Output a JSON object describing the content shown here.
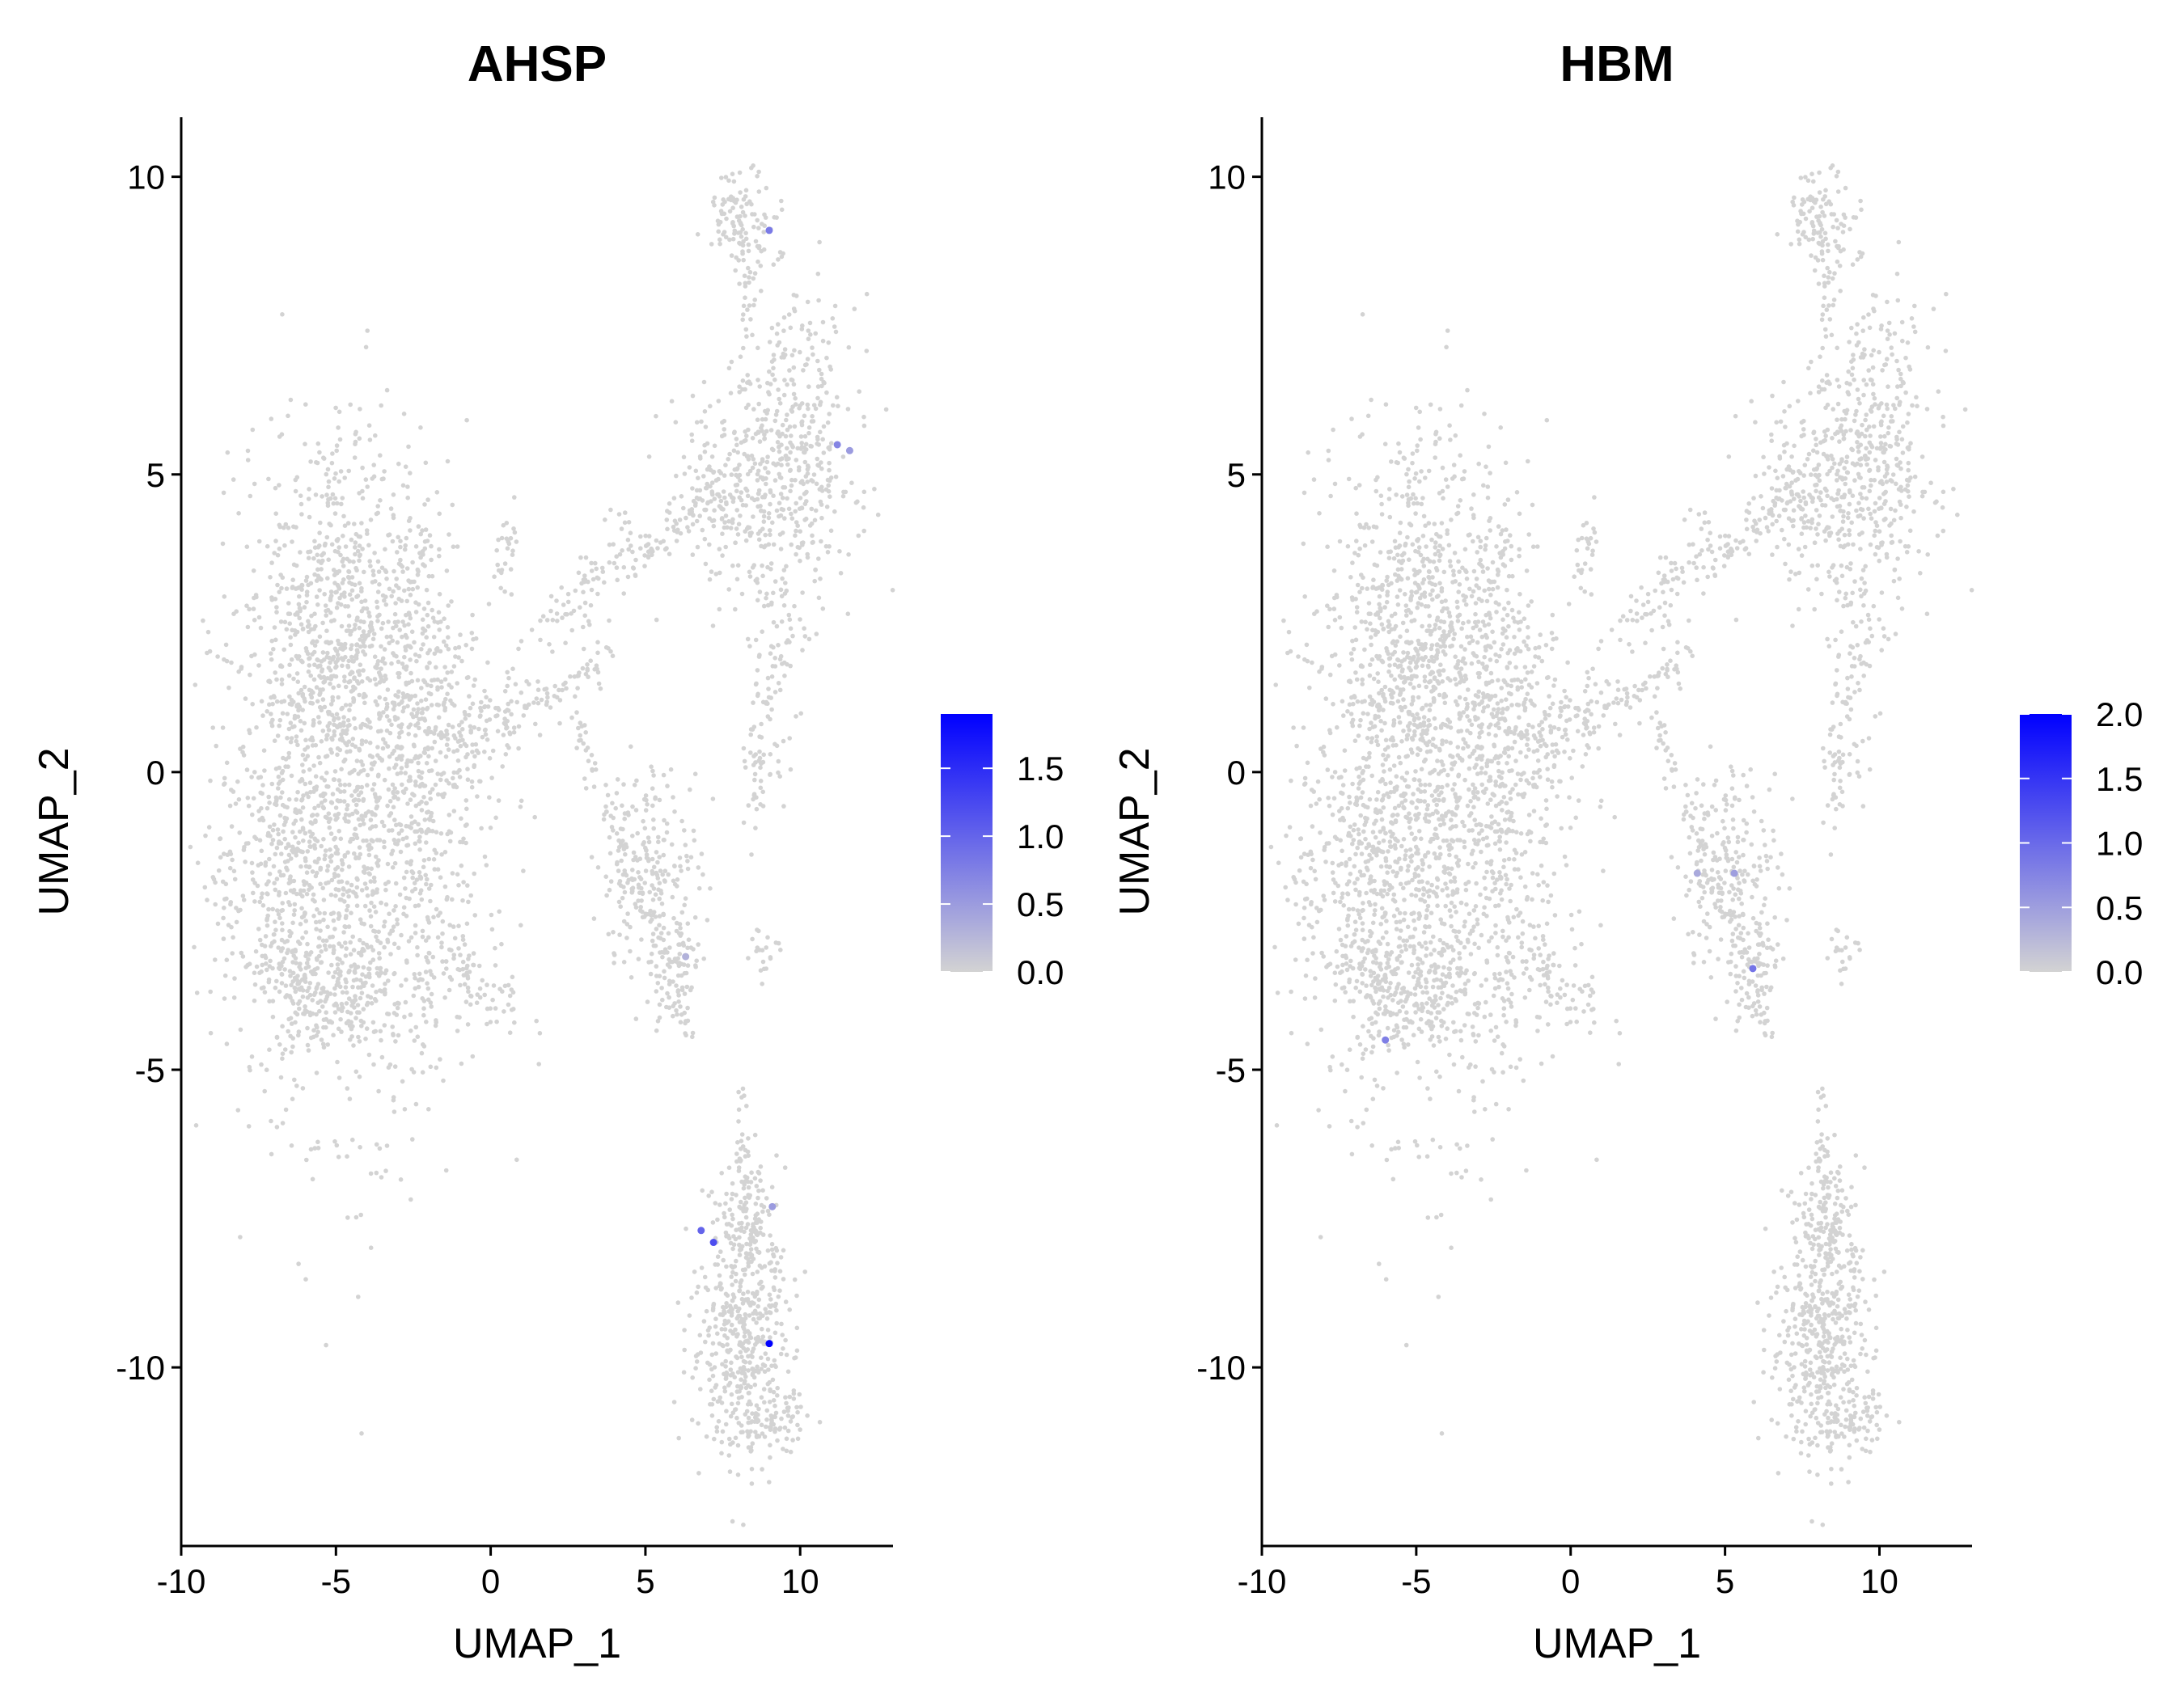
{
  "chart_data": [
    {
      "type": "scatter",
      "title": "AHSP",
      "xlabel": "UMAP_1",
      "ylabel": "UMAP_2",
      "xlim": [
        -10,
        13
      ],
      "ylim": [
        -13,
        11
      ],
      "xticks": [
        "-10",
        "-5",
        "0",
        "5",
        "10"
      ],
      "yticks": [
        "-10",
        "-5",
        "0",
        "5",
        "10"
      ],
      "grid": false,
      "point_color_low": "#d3d3d3",
      "point_color_high": "#0000ff",
      "colorbar": {
        "min": 0,
        "max": 1.9,
        "ticks": [
          "0.0",
          "0.5",
          "1.0",
          "1.5"
        ],
        "placement": "right"
      },
      "highlighted_points": [
        {
          "x": 9.0,
          "y": -9.6,
          "value": 1.9
        },
        {
          "x": 6.8,
          "y": -7.7,
          "value": 1.0
        },
        {
          "x": 7.2,
          "y": -7.9,
          "value": 1.2
        },
        {
          "x": 9.0,
          "y": 9.1,
          "value": 0.8
        },
        {
          "x": 11.2,
          "y": 5.5,
          "value": 0.7
        },
        {
          "x": 11.6,
          "y": 5.4,
          "value": 0.5
        },
        {
          "x": 9.1,
          "y": -7.3,
          "value": 0.5
        },
        {
          "x": 6.3,
          "y": -3.1,
          "value": 0.3
        }
      ]
    },
    {
      "type": "scatter",
      "title": "HBM",
      "xlabel": "UMAP_1",
      "ylabel": "UMAP_2",
      "xlim": [
        -10,
        13
      ],
      "ylim": [
        -13,
        11
      ],
      "xticks": [
        "-10",
        "-5",
        "0",
        "5",
        "10"
      ],
      "yticks": [
        "-10",
        "-5",
        "0",
        "5",
        "10"
      ],
      "grid": false,
      "point_color_low": "#d3d3d3",
      "point_color_high": "#0000ff",
      "colorbar": {
        "min": 0,
        "max": 2.0,
        "ticks": [
          "0.0",
          "0.5",
          "1.0",
          "1.5",
          "2.0"
        ],
        "placement": "right"
      },
      "highlighted_points": [
        {
          "x": 5.9,
          "y": -3.3,
          "value": 0.9
        },
        {
          "x": -6.0,
          "y": -4.5,
          "value": 0.8
        },
        {
          "x": 4.1,
          "y": -1.7,
          "value": 0.4
        },
        {
          "x": 5.3,
          "y": -1.7,
          "value": 0.5
        }
      ]
    }
  ]
}
